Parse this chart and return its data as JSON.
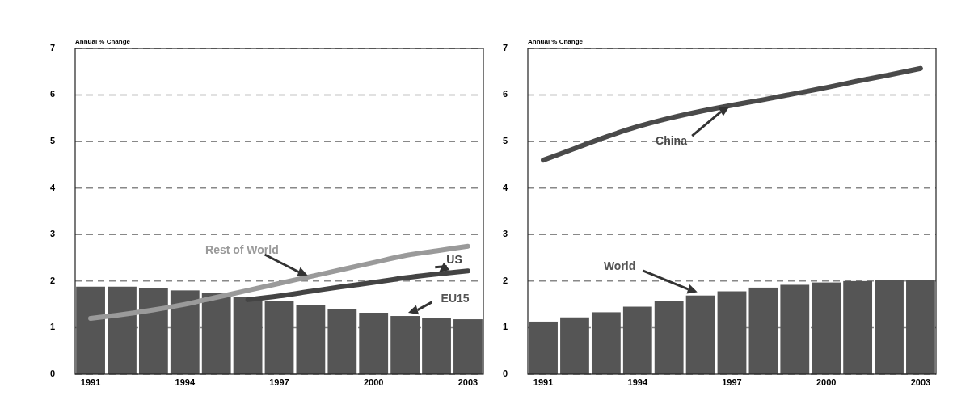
{
  "chart_data": [
    {
      "type": "bar",
      "ylabel": "Annual % Change",
      "categories": [
        "1991",
        null,
        null,
        "1994",
        null,
        null,
        "1997",
        null,
        null,
        "2000",
        null,
        null,
        "2003"
      ],
      "ylim": [
        0,
        7
      ],
      "yticks": [
        0,
        1,
        2,
        3,
        4,
        5,
        6,
        7
      ],
      "grid": "y",
      "series": [
        {
          "name": "EU15",
          "color": "#555555",
          "values": [
            1.88,
            1.88,
            1.85,
            1.8,
            1.75,
            1.65,
            1.57,
            1.48,
            1.4,
            1.32,
            1.25,
            1.2,
            1.18
          ]
        },
        {
          "name": "Rest of World",
          "type": "line",
          "color": "#9a9a9a",
          "values": [
            1.2,
            1.28,
            1.38,
            1.5,
            1.65,
            1.8,
            1.95,
            2.1,
            2.25,
            2.4,
            2.55,
            2.65,
            2.75
          ]
        },
        {
          "name": "US",
          "type": "line",
          "color": "#444444",
          "values": [
            null,
            null,
            null,
            null,
            null,
            1.6,
            1.68,
            1.78,
            1.88,
            1.97,
            2.07,
            2.15,
            2.22
          ]
        }
      ]
    },
    {
      "type": "bar",
      "ylabel": "Annual % Change",
      "categories": [
        "1991",
        null,
        null,
        "1994",
        null,
        null,
        "1997",
        null,
        null,
        "2000",
        null,
        null,
        "2003"
      ],
      "ylim": [
        0,
        7
      ],
      "yticks": [
        0,
        1,
        2,
        3,
        4,
        5,
        6,
        7
      ],
      "grid": "y",
      "series": [
        {
          "name": "World",
          "color": "#555555",
          "values": [
            1.13,
            1.22,
            1.33,
            1.45,
            1.57,
            1.69,
            1.78,
            1.86,
            1.92,
            1.97,
            2.0,
            2.02,
            2.03
          ]
        },
        {
          "name": "China",
          "type": "line",
          "color": "#4a4a4a",
          "values": [
            4.6,
            4.85,
            5.1,
            5.32,
            5.5,
            5.65,
            5.78,
            5.9,
            6.03,
            6.16,
            6.3,
            6.43,
            6.57
          ]
        }
      ]
    }
  ]
}
